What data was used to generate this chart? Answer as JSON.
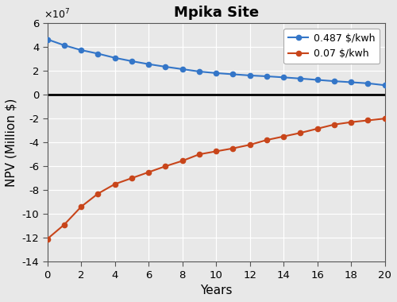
{
  "title": "Mpika Site",
  "xlabel": "Years",
  "ylabel": "NPV (Million $)",
  "xlim": [
    0,
    20
  ],
  "ylim": [
    -140000000.0,
    60000000.0
  ],
  "yticks": [
    -14,
    -12,
    -10,
    -8,
    -6,
    -4,
    -2,
    0,
    2,
    4,
    6
  ],
  "xticks": [
    0,
    2,
    4,
    6,
    8,
    10,
    12,
    14,
    16,
    18,
    20
  ],
  "series_487": {
    "label": "0.487 $/kwh",
    "color": "#3476C8",
    "marker": "o",
    "values": [
      46500000.0,
      41500000.0,
      37500000.0,
      34500000.0,
      31000000.0,
      28200000.0,
      25700000.0,
      23500000.0,
      21500000.0,
      19500000.0,
      18200000.0,
      17200000.0,
      16200000.0,
      15500000.0,
      14600000.0,
      13600000.0,
      12500000.0,
      11400000.0,
      10500000.0,
      9600000.0,
      8000000.0
    ]
  },
  "series_007": {
    "label": "0.07 $/kwh",
    "color": "#C8451A",
    "marker": "o",
    "values": [
      -121000000.0,
      -109000000.0,
      -94000000.0,
      -83000000.0,
      -75000000.0,
      -70000000.0,
      -65000000.0,
      -60000000.0,
      -55500000.0,
      -50000000.0,
      -47500000.0,
      -45000000.0,
      -42000000.0,
      -38000000.0,
      -35000000.0,
      -32000000.0,
      -28500000.0,
      -25000000.0,
      -23000000.0,
      -21500000.0,
      -20000000.0
    ]
  },
  "background_color": "#E8E8E8",
  "plot_bg_color": "#E8E8E8",
  "grid_color": "#FFFFFF",
  "zero_line_color": "#000000"
}
